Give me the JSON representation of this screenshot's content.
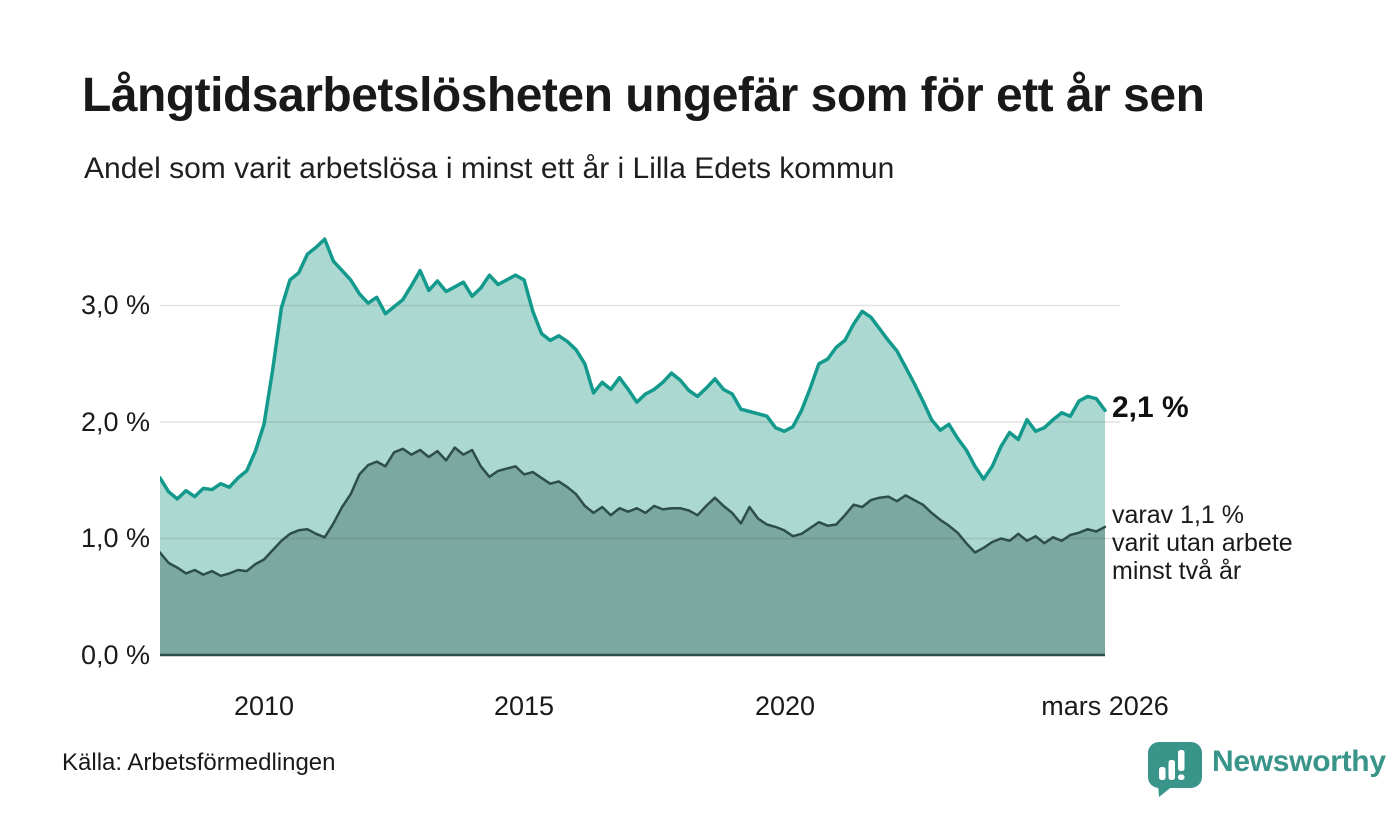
{
  "header": {
    "title": "Långtidsarbetslösheten ungefär som för ett år sen",
    "subtitle": "Andel som varit arbetslösa i minst ett år i Lilla Edets kommun"
  },
  "chart_data": {
    "type": "area",
    "title": "Långtidsarbetslösheten ungefär som för ett år sen",
    "subtitle": "Andel som varit arbetslösa i minst ett år i Lilla Edets kommun",
    "x_start": "2008-01",
    "x_step_months": 2,
    "x_end": "2026-03",
    "ylim": [
      0,
      3.7
    ],
    "grid": true,
    "y_tick_labels": [
      "3,0 %",
      "2,0 %",
      "1,0 %",
      "0,0 %"
    ],
    "x_tick_labels": [
      "2010",
      "2015",
      "2020",
      "mars 2026"
    ],
    "gridline_color": "#e4e4e4",
    "series": [
      {
        "id": "total",
        "name": "Andel som varit arbetslösa i minst ett år",
        "color": "#149a8c",
        "fill": "#abd9d1",
        "latest_value_pct": 2.1,
        "values": [
          1.52,
          1.4,
          1.34,
          1.41,
          1.36,
          1.43,
          1.42,
          1.47,
          1.44,
          1.52,
          1.58,
          1.75,
          1.98,
          2.45,
          2.98,
          3.22,
          3.28,
          3.44,
          3.5,
          3.57,
          3.38,
          3.3,
          3.22,
          3.1,
          3.02,
          3.07,
          2.93,
          2.99,
          3.05,
          3.17,
          3.3,
          3.13,
          3.21,
          3.12,
          3.16,
          3.2,
          3.08,
          3.15,
          3.26,
          3.18,
          3.22,
          3.26,
          3.22,
          2.95,
          2.76,
          2.7,
          2.74,
          2.69,
          2.62,
          2.5,
          2.25,
          2.34,
          2.28,
          2.38,
          2.28,
          2.17,
          2.24,
          2.28,
          2.34,
          2.42,
          2.36,
          2.27,
          2.22,
          2.29,
          2.37,
          2.28,
          2.24,
          2.11,
          2.09,
          2.07,
          2.05,
          1.95,
          1.92,
          1.96,
          2.1,
          2.29,
          2.5,
          2.54,
          2.64,
          2.7,
          2.84,
          2.95,
          2.9,
          2.8,
          2.7,
          2.61,
          2.47,
          2.33,
          2.18,
          2.02,
          1.93,
          1.98,
          1.86,
          1.76,
          1.62,
          1.51,
          1.62,
          1.79,
          1.91,
          1.85,
          2.02,
          1.92,
          1.95,
          2.02,
          2.08,
          2.05,
          2.18,
          2.22,
          2.2,
          2.1
        ]
      },
      {
        "id": "twoyears",
        "name": "varav utan arbete minst två år",
        "color": "#2e4f48",
        "fill": "#7ba8a0",
        "latest_value_pct": 1.1,
        "values": [
          0.88,
          0.79,
          0.75,
          0.7,
          0.73,
          0.69,
          0.72,
          0.68,
          0.7,
          0.73,
          0.72,
          0.78,
          0.82,
          0.9,
          0.98,
          1.04,
          1.07,
          1.08,
          1.04,
          1.01,
          1.13,
          1.27,
          1.38,
          1.55,
          1.63,
          1.66,
          1.62,
          1.74,
          1.77,
          1.72,
          1.76,
          1.7,
          1.75,
          1.67,
          1.78,
          1.72,
          1.76,
          1.62,
          1.53,
          1.58,
          1.6,
          1.62,
          1.55,
          1.57,
          1.52,
          1.47,
          1.49,
          1.44,
          1.38,
          1.28,
          1.22,
          1.27,
          1.2,
          1.26,
          1.23,
          1.26,
          1.22,
          1.28,
          1.25,
          1.26,
          1.26,
          1.24,
          1.2,
          1.28,
          1.35,
          1.28,
          1.22,
          1.13,
          1.27,
          1.17,
          1.12,
          1.1,
          1.07,
          1.02,
          1.04,
          1.09,
          1.14,
          1.11,
          1.12,
          1.2,
          1.29,
          1.27,
          1.33,
          1.35,
          1.36,
          1.32,
          1.37,
          1.33,
          1.29,
          1.22,
          1.16,
          1.11,
          1.05,
          0.96,
          0.88,
          0.92,
          0.97,
          1.0,
          0.98,
          1.04,
          0.98,
          1.02,
          0.96,
          1.01,
          0.98,
          1.03,
          1.05,
          1.08,
          1.06,
          1.1
        ]
      }
    ],
    "annotations": {
      "latest_total": "2,1 %",
      "latest_two_years_lines": [
        "varav 1,1 %",
        "varit utan arbete",
        "minst två år"
      ]
    },
    "legend_position": "right-annotations"
  },
  "footer": {
    "source": "Källa: Arbetsförmedlingen",
    "brand": "Newsworthy",
    "brand_color": "#399489"
  }
}
